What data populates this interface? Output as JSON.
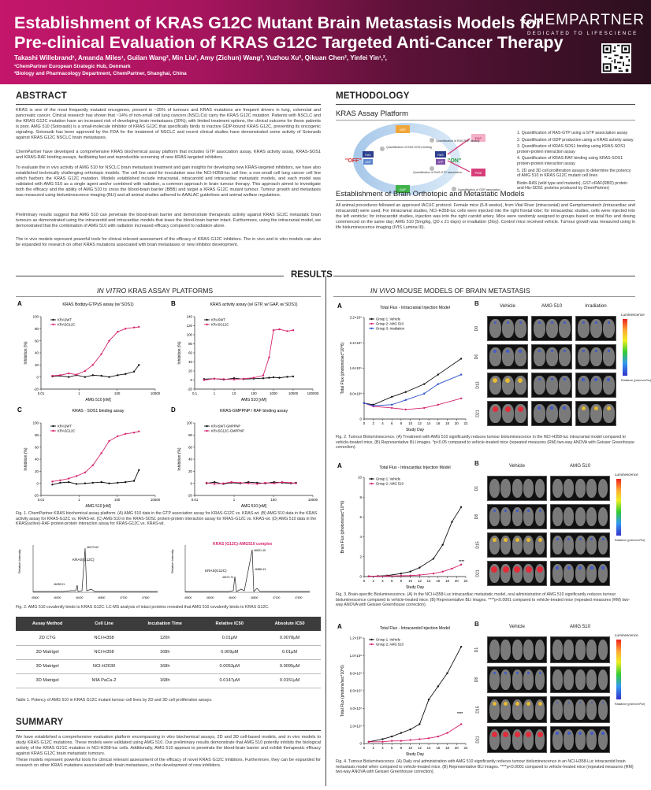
{
  "header": {
    "title_line1": "Establishment of KRAS G12C Mutant Brain Metastasis Models for",
    "title_line2": "Pre-clinical Evaluation of KRAS G12C Targeted Anti-Cancer Therapy",
    "authors": "Takashi Willebrand¹, Amanda Miles¹, Guilan Wang², Min Liu², Amy (Zichun) Wang², Yuzhou Xu², Qikuan Chen², Yinfei Yin¹,²,",
    "affil1": "¹ChemPartner European Strategic Hub, Denmark",
    "affil2": "²Biology and Pharmacology Department, ChemPartner, Shanghai, China",
    "logo": "CHEMPARTNER",
    "logo_sub": "DEDICATED TO LIFESCIENCE"
  },
  "abstract": {
    "title": "ABSTRACT",
    "p1": "KRAS is one of the most frequently mutated oncogenes, present in ~25% of tumours and KRAS mutations are frequent drivers in lung, colorectal and pancreatic cancer. Clinical research has shown that ~14% of non-small cell lung cancers (NSCLCs) carry the KRAS G12C mutation. Patients with NSCLC and the KRAS G12C mutation have an increased risk of developing brain metastases (30%); with limited treatment options, the clinical outcome for these patients is poor. AMG 510 (Sotorasib) is a small-molecule inhibitor of KRAS G12C that specifically binds to inactive GDP-bound KRAS G12C, preventing its oncogenic signaling. Sotorasib has been approved by the FDA for the treatment of NSCLC and recent clinical studies have demonstrated some activity of Sotorasib against KRAS G12C NSCLC brain metastases.",
    "p2": "ChemPartner have developed a comprehensive KRAS biochemical assay platform that includes GTP association assay, KRAS activity assay, KRAS-SOS1 and KRAS-RAF binding assays, facilitating fast and reproducible screening of new KRAS-targeted inhibitors.",
    "p3": "To evaluate the in vivo activity of AMG 510 for NSCLC brain metastasis treatment and gain insights for developing new KRAS-targeted inhibitors, we have also established technically challenging orthotopic models. The cell line used for inoculation was the NCI-H358-luc cell line; a non-small cell lung cancer cell line which harbors the KRAS G12C mutation. Models established include intracranial, intracarotid and intracardiac metastatic models, and each model was validated with AMG 510 as a single agent and/or combined with radiation, a common approach in brain tumour therapy. This approach aimed to investigate both the efficacy and the ability of AMG 510 to cross the blood-brain barrier (BBB) and target a KRAS G12C mutant tumour. Tumour growth and metastasis was measured using bioluminescence imaging (BLI) and all animal studies adhered to AAALAC guidelines and animal welfare regulations.",
    "p4": "Preliminary results suggest that AMG 510 can penetrate the blood-brain barrier and demonstrate therapeutic activity against KRAS G12C metastatic brain tumours as demonstrated using the intracarotid and intracardiac models that leave the blood-brain barrier intact. Furthermore, using the intracranial model, we demonstrated that the combination of AMG 510 with radiation increased efficacy compared to radiation alone.",
    "p5": "The in vivo models represent powerful tools for clinical relevant assessment of the efficacy of KRAS G12C inhibitors. The in vivo and in vitro models can also be expanded for research on other KRAS mutations associated with brain metastases or new inhibitor development."
  },
  "methodology": {
    "title": "METHODOLOGY",
    "assay_title": "KRAS Assay Platform",
    "diagram": {
      "gef": "GEF",
      "gap": "GAP",
      "off": "\"OFF\"",
      "on": "\"ON\"",
      "ras": "RAS",
      "gdp": "GDP",
      "gtp": "GTP",
      "raf": "RAF",
      "pi3k": "PI3K",
      "step1": "Quantification of RAS-GTP association",
      "step2": "Quantification of RAS-SOS1 binding",
      "step3": "Quantification of GDP association",
      "step4": "Quantification of RAS-RAF binding"
    },
    "steps": [
      "1.  Quantification of RAS-GTP using a GTP association assay",
      "2.  Quantification of GDP production using a KRAS activity assay",
      "3.  Quantification of KRAS-SOS1 binding using KRAS-SOS1 protein-protein interaction assay",
      "4.  Quantification of KRAS-RAF binding using KRAS-SOS1 protein-protein interaction assay",
      "5.  2D and 3D cell proliferation assays to determine the potency of AMG 510 in KRAS G12C mutant cell lines"
    ],
    "biotin_note": "Biotin-RAS (wild type and mutants), GST-cRAF(RBD) protein and His-SOS1 proteins produced by ChemPartner)",
    "models_title": "Establishment of Brain Orthotopic and Metastatic Models",
    "models_text": "All animal procedures followed an approved IACUC protocol. Female mice (6-8 weeks), from Vital River (intracranial) and Gempharmatech (intracardiac and intracarotid) were used. For intracranial studies, NCI-H358-luc cells were injected into the right frontal lobe; for intracardiac studies, cells were injected into the left ventricle; for intracarotid studies, injection was into the right carotid artery. Mice were randomly assigned to groups based on total flux and dosing commenced on the same day; AMG 510 (5mg/kg, QD x 21 days) or irradiation (3Gy). Control mice received vehicle. Tumour growth was measured using in life bioluminescence imaging (IVIS Lumina III)."
  },
  "results": {
    "title": "RESULTS",
    "left_head_pre": "IN VITRO",
    "left_head_post": " KRAS ASSAY PLATFORMS",
    "right_head_pre": "IN VIVO",
    "right_head_post": " MOUSE MODELS OF BRAIN METASTASIS"
  },
  "chart_data": [
    {
      "type": "line",
      "label": "A",
      "title": "KRAS Bodipy-GTPγS assay (w/ SOS1)",
      "xlabel": "AMG 510 [nM]",
      "ylabel": "Inhibition (%)",
      "xscale": "log",
      "xlim": [
        0.01,
        100000
      ],
      "ylim": [
        -20,
        100
      ],
      "xticks": [
        "0.01",
        "1",
        "100",
        "10000"
      ],
      "yticks": [
        "-20",
        "0",
        "20",
        "40",
        "60",
        "80",
        "100"
      ],
      "x": [
        0.05,
        0.15,
        0.5,
        1.5,
        5,
        15,
        50,
        150,
        500,
        1500,
        5000,
        10000
      ],
      "series": [
        {
          "name": "KRASWT",
          "color": "#111111",
          "values": [
            1,
            2,
            0,
            3,
            0,
            3,
            2,
            0,
            3,
            5,
            9,
            20
          ]
        },
        {
          "name": "KRASG12C",
          "color": "#d6246e",
          "values": [
            2,
            3,
            6,
            4,
            10,
            20,
            38,
            60,
            75,
            80,
            82,
            83
          ]
        }
      ]
    },
    {
      "type": "line",
      "label": "B",
      "title": "KRAS activity assay (w/ GTP, w/ GAP, w/ SOS1)",
      "xlabel": "AMG 510 [nM]",
      "ylabel": "Inhibition (%)",
      "xscale": "log",
      "xlim": [
        0.1,
        100000
      ],
      "ylim": [
        -20,
        140
      ],
      "xticks": [
        "0.1",
        "1",
        "10",
        "100",
        "1000",
        "10000",
        "100000"
      ],
      "yticks": [
        "-20",
        "0",
        "20",
        "40",
        "60",
        "80",
        "100",
        "120",
        "140"
      ],
      "x": [
        0.3,
        1,
        3,
        10,
        30,
        100,
        300,
        600,
        1000,
        2000,
        5000,
        10000
      ],
      "series": [
        {
          "name": "KRASWT",
          "color": "#111111",
          "values": [
            2,
            3,
            1,
            4,
            2,
            3,
            4,
            5,
            6,
            5,
            7,
            8
          ]
        },
        {
          "name": "KRASG12C",
          "color": "#d6246e",
          "values": [
            0,
            3,
            2,
            1,
            3,
            5,
            10,
            50,
            110,
            112,
            108,
            110
          ]
        }
      ]
    },
    {
      "type": "line",
      "label": "C",
      "title": "KRAS - SOS1 binding assay",
      "xlabel": "AMG 510 [nM]",
      "ylabel": "Inhibition (%)",
      "xscale": "log",
      "xlim": [
        0.01,
        100000
      ],
      "ylim": [
        -20,
        100
      ],
      "xticks": [
        "0.01",
        "1",
        "100",
        "10000"
      ],
      "yticks": [
        "-20",
        "0",
        "20",
        "40",
        "60",
        "80",
        "100"
      ],
      "x": [
        0.05,
        0.15,
        0.5,
        1.5,
        5,
        15,
        50,
        150,
        500,
        1500,
        5000,
        10000
      ],
      "series": [
        {
          "name": "KRASWT",
          "color": "#111111",
          "values": [
            -2,
            1,
            2,
            -1,
            0,
            1,
            2,
            0,
            1,
            2,
            4,
            22
          ]
        },
        {
          "name": "KRASG12C",
          "color": "#d6246e",
          "values": [
            3,
            5,
            8,
            12,
            18,
            30,
            50,
            70,
            78,
            82,
            84,
            86
          ]
        }
      ]
    },
    {
      "type": "line",
      "label": "D",
      "title": "KRAS-GMPPNP / RAF binding assay",
      "xlabel": "AMG 510 [nM]",
      "ylabel": "Inhibition (%)",
      "xscale": "log",
      "xlim": [
        0.01,
        100000
      ],
      "ylim": [
        -20,
        100
      ],
      "xticks": [
        "0.01",
        "1",
        "100",
        "10000"
      ],
      "yticks": [
        "-20",
        "0",
        "20",
        "40",
        "60",
        "80",
        "100"
      ],
      "x": [
        0.05,
        0.15,
        0.5,
        1.5,
        5,
        15,
        50,
        150,
        500,
        1500,
        5000,
        10000
      ],
      "series": [
        {
          "name": "KRASWT-GMPPNP",
          "color": "#111111",
          "values": [
            0,
            2,
            -1,
            1,
            0,
            2,
            1,
            0,
            2,
            1,
            0,
            1
          ]
        },
        {
          "name": "KRASG12C-GMPPNP",
          "color": "#d6246e",
          "values": [
            1,
            -1,
            0,
            2,
            1,
            0,
            -1,
            1,
            0,
            2,
            1,
            0
          ]
        }
      ]
    },
    {
      "type": "line",
      "label": "A",
      "title": "Total Flux - Intracranial Injection Model",
      "xlabel": "Study Day",
      "ylabel": "Total Flux (photons/sec*10^6)",
      "xlim": [
        0,
        22
      ],
      "ylim": [
        0,
        3200000000.0
      ],
      "xticks": [
        "0",
        "2",
        "4",
        "6",
        "8",
        "10",
        "12",
        "14",
        "16",
        "18",
        "20",
        "22"
      ],
      "yticks": [
        "0",
        "8.0×10⁸",
        "1.6×10⁹",
        "2.4×10⁹",
        "3.2×10⁹"
      ],
      "x": [
        0,
        2,
        6,
        9,
        13,
        16,
        21
      ],
      "series": [
        {
          "name": "Group 1: Vehicle",
          "color": "#111111",
          "values": [
            500000000.0,
            450000000.0,
            700000000.0,
            850000000.0,
            1100000000.0,
            1400000000.0,
            1900000000.0
          ]
        },
        {
          "name": "Group 2: AMG 510",
          "color": "#d6246e",
          "values": [
            500000000.0,
            400000000.0,
            350000000.0,
            300000000.0,
            350000000.0,
            450000000.0,
            650000000.0
          ]
        },
        {
          "name": "Group 3: Irradiation",
          "color": "#2b4fc7",
          "values": [
            500000000.0,
            420000000.0,
            450000000.0,
            600000000.0,
            800000000.0,
            1100000000.0,
            1400000000.0
          ]
        }
      ]
    },
    {
      "type": "line",
      "label": "A",
      "title": "Total Flux - Intracardiac Injection Model",
      "xlabel": "Study Day",
      "ylabel": "Brain Flux (photons/sec*10^6)",
      "xlim": [
        0,
        22
      ],
      "ylim": [
        0,
        10
      ],
      "xticks": [
        "0",
        "2",
        "4",
        "6",
        "8",
        "10",
        "12",
        "14",
        "16",
        "18",
        "20",
        "22"
      ],
      "yticks": [
        "0",
        "2",
        "4",
        "6",
        "8",
        "10"
      ],
      "x": [
        1,
        3,
        5,
        8,
        10,
        12,
        15,
        17,
        19,
        21
      ],
      "series": [
        {
          "name": "Group 1: Vehicle",
          "color": "#111111",
          "values": [
            0.02,
            0.05,
            0.1,
            0.3,
            0.5,
            0.9,
            1.8,
            3.2,
            5.5,
            7.0
          ]
        },
        {
          "name": "Group 2: AMG 510",
          "color": "#d6246e",
          "values": [
            0.02,
            0.03,
            0.05,
            0.08,
            0.1,
            0.15,
            0.3,
            0.5,
            0.8,
            1.2
          ]
        }
      ]
    },
    {
      "type": "line",
      "label": "A",
      "title": "Total Flux - Intracarotid Injection Model",
      "xlabel": "Study Day",
      "ylabel": "Total Flux (photons/sec*10^6)",
      "xlim": [
        0,
        22
      ],
      "ylim": [
        0,
        120000000.0
      ],
      "xticks": [
        "0",
        "2",
        "4",
        "6",
        "8",
        "10",
        "12",
        "14",
        "16",
        "18",
        "20",
        "22"
      ],
      "yticks": [
        "0",
        "2.0×10⁷",
        "4.0×10⁷",
        "6.0×10⁷",
        "8.0×10⁷",
        "1.0×10⁸",
        "1.2×10⁸"
      ],
      "x": [
        1,
        4,
        6,
        8,
        10,
        12,
        14,
        16,
        18,
        21
      ],
      "series": [
        {
          "name": "Group 1: Vehicle",
          "color": "#111111",
          "values": [
            2000000.0,
            5000000.0,
            8000000.0,
            12000000.0,
            16000000.0,
            22000000.0,
            50000000.0,
            65000000.0,
            80000000.0,
            110000000.0
          ]
        },
        {
          "name": "Group 2: AMG 510",
          "color": "#d6246e",
          "values": [
            2000000.0,
            2000000.0,
            3000000.0,
            3000000.0,
            4000000.0,
            5000000.0,
            6000000.0,
            8000000.0,
            12000000.0,
            22000000.0
          ]
        }
      ]
    }
  ],
  "fig1_caption": "Fig. 1. ChemPartner KRAS biochemical assay platform. (A) AMG 510 data in the GTP association assay for KRAS-G12C vs. KRAS-wt. (B) AMG 510 data in the KRAS activity assay for KRAS-G12C vs. KRAS-wt. (C) AMG 510 in the KRAS-SOS1 protein-protein interaction assay for KRAS-G12C vs. KRAS-wt. (D) AMG 510 data in the KRAS(active)-RAF protein-protein interaction assay for KRAS-G12C vs. KRAS-wt.",
  "fig2_caption": "Fig. 2. AMG 510 covalently binds to KRAS G12C. LC-MS analysis of intact proteins revealed that AMG 510 covalently binds to KRAS G12C.",
  "ms": {
    "left_label": "KRAS(G12C)",
    "left_peak": "46270.62",
    "left_minor": "46289.91",
    "right_title": "KRAS (G12C)-AMG510 complex",
    "right_peak": "46831.45",
    "right_label": "KRAS(G12C)",
    "right_minor1": "46270.74",
    "right_minor2": "46889.43",
    "xticks": [
      "45600",
      "46000",
      "46400",
      "46800",
      "47200",
      "47600"
    ],
    "ylabel": "Relative Intensity"
  },
  "table": {
    "headers": [
      "Assay Method",
      "Cell Line",
      "Incubation Time",
      "Relative IC50",
      "Absolute IC50"
    ],
    "rows": [
      [
        "2D CTG",
        "NCI-H358",
        "120h",
        "0.01μM",
        "0.0078μM"
      ],
      [
        "3D Matrigel",
        "NCI-H358",
        "168h",
        "0.009μM",
        "0.01μM"
      ],
      [
        "3D Matrigel",
        "NCI-H2030",
        "168h",
        "0.0053μM",
        "0.0095μM"
      ],
      [
        "3D Matrigel",
        "MIA PaCa-2",
        "168h",
        "0.0147μM",
        "0.0151μM"
      ]
    ],
    "caption": "Table 1. Potency of AMG 510 in KRAS G12C mutant tumour cell lines by 2D and 3D cell proliferation assays."
  },
  "summary": {
    "title": "SUMMARY",
    "p1": "We have established a comprehensive evaluation platform encompassing in vitro biochemical assays, 2D and 3D cell-based models, and in vivo models to study KRAS G12C mutations. These models were validated using AMG 510. Our preliminary results demonstrate that AMG 510 potently inhibits the biological activity of the KRAS G21C mutation in NCI-H358-luc cells. Additionally, AMG 510 appears to penetrate the blood-brain barrier and exhibit therapeutic efficacy against KRAS G12C brain metastatic tumours.",
    "p2": "These models represent powerful tools for clinical relevant assessment of the efficacy of novel KRAS G12C inhibitors, Furthermore, they can be expanded for research on other KRAS mutations associated with brain metastases, or the development of new inhibitors."
  },
  "invivo": {
    "fig2_caption": "Fig. 2. Tumour Bioluminescence. (A) Treatment with AMG 510 significantly reduces tumour bioluminescence in the NCI-H358-luc intracranial model compared to vehicle-treated mice, (B) Representative BLI images. *p<0.05 compared to vehicle-treated mice (repeated measures (RM) two-way ANOVA with Geisser Greenhouse correction).",
    "fig3_caption": "Fig. 3. Brain-specific Bioluminescence. (A) In the NCI-H358-Luc intracardiac metastatic model, oral administration of AMG 510 significantly reduces tumour bioluminescence compared to vehicle-treated mice. (B) Representative BLI images. ****p<0.0001 compared to vehicle-treated mice (repeated measures (RM) two-way ANOVA with Geisser Greenhouse correction).",
    "fig4_caption": "Fig. 4. Tumour Bioluminescence. (A) Daily oral administration with AMG 510 significantly reduces tumour bioluminescence in an NCI-H358-Luc intracarotid brain metastasis model when compared to vehicle-treated mice. (B) Representative BLI images. ****p<0.0001 compared to vehicle-treated mice (repeated measures (RM) two-way ANOVA with Geisser Greenhouse correction).",
    "sig": "****",
    "img1": {
      "cols": [
        "Vehicle",
        "AMG 510",
        "Irradiation"
      ],
      "rows": [
        "D0",
        "D6",
        "D13",
        "D21"
      ]
    },
    "img2": {
      "cols": [
        "Vehicle",
        "AMG 510"
      ],
      "rows": [
        "D1",
        "D8",
        "D15",
        "D21"
      ]
    },
    "img3": {
      "cols": [
        "Vehicle",
        "AMG 510"
      ],
      "rows": [
        "D1",
        "D8",
        "D15",
        "D21"
      ]
    },
    "colorbar_label": "Luminescence",
    "colorbar_unit": "Radiance (p/sec/cm²/sr)"
  }
}
